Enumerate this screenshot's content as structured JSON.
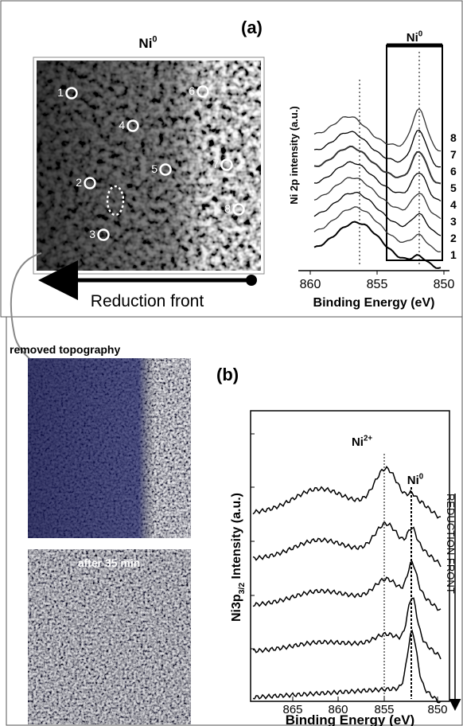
{
  "panel_a": {
    "label": "(a)",
    "map_title": {
      "base": "Ni",
      "sup": "0"
    },
    "map_points": [
      "1",
      "2",
      "3",
      "4",
      "5",
      "6",
      "7",
      "8"
    ],
    "front_label": "Reduction front",
    "y_label": "Ni 2p intensity (a.u.)",
    "x_label": "Binding Energy (eV)",
    "x_ticks": [
      "860",
      "855",
      "850"
    ],
    "region_label": {
      "base": "Ni",
      "sup": "0"
    },
    "curve_labels": [
      "1",
      "2",
      "3",
      "4",
      "5",
      "6",
      "7",
      "8"
    ]
  },
  "panel_b": {
    "label": "(b)",
    "image_top_label": "removed topography",
    "image_bottom_label": "after 35 min",
    "peak_labels": [
      {
        "base": "Ni",
        "sup": "2+"
      },
      {
        "base": "Ni",
        "sup": "0"
      }
    ],
    "y_label": {
      "base": "Ni3p",
      "sub": "3/2",
      "rest": " Intensity (a.u.)"
    },
    "x_label": "Binding Energy (eV)",
    "x_ticks": [
      "865",
      "860",
      "855",
      "850"
    ],
    "arrow_label": "REDUCTION FRONT"
  }
}
